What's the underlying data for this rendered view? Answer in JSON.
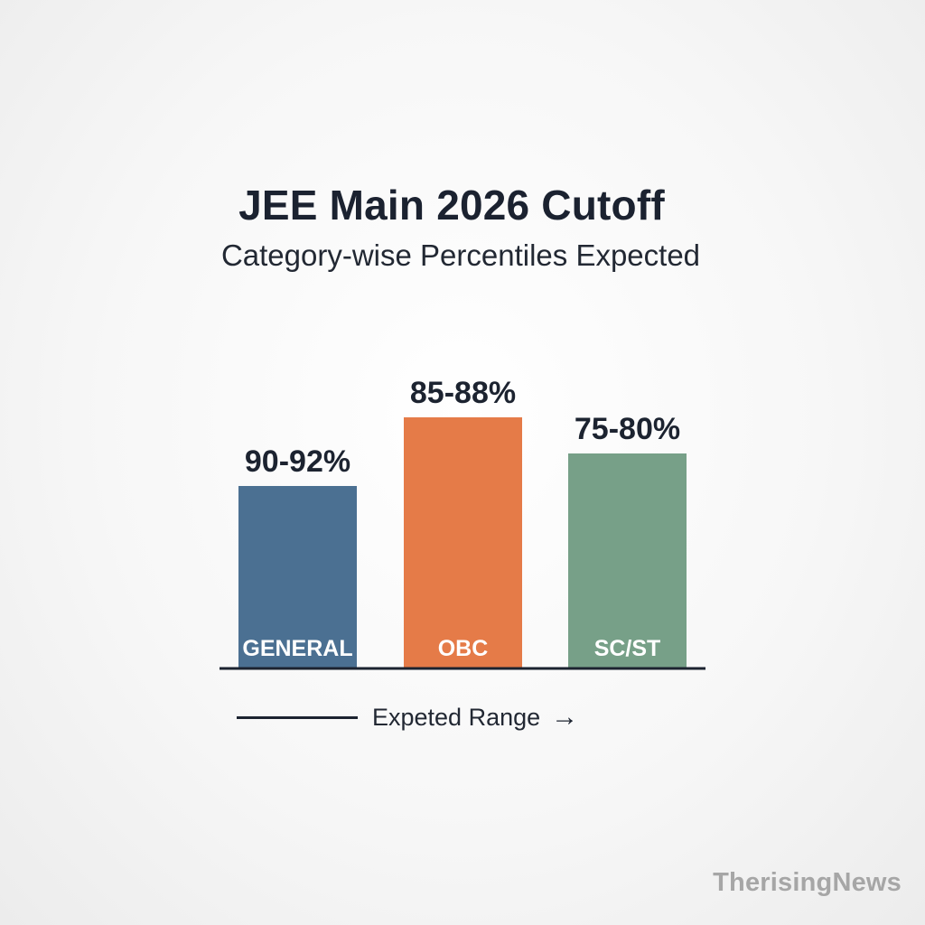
{
  "chart_data": {
    "type": "bar",
    "title": "JEE Main 2026 Cutoff",
    "subtitle": "Category-wise Percentiles Expected",
    "categories": [
      "GENERAL",
      "OBC",
      "SC/ST"
    ],
    "values": [
      {
        "label": "90-92%",
        "range": [
          90,
          92
        ]
      },
      {
        "label": "85-88%",
        "range": [
          85,
          88
        ]
      },
      {
        "label": "75-80%",
        "range": [
          75,
          80
        ]
      }
    ],
    "colors": [
      "#4b7092",
      "#e57b48",
      "#77a088"
    ],
    "legend": {
      "text": "Expeted Range",
      "arrow": "→"
    },
    "xlabel": "",
    "ylabel": "",
    "grid": false
  },
  "watermark": "TherisingNews"
}
